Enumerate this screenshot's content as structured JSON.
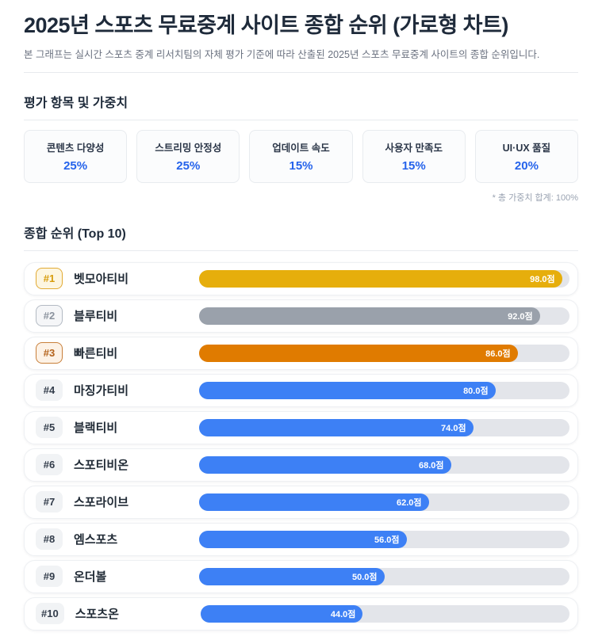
{
  "header": {
    "title": "2025년 스포츠 무료중계 사이트 종합 순위 (가로형 차트)",
    "subtitle": "본 그래프는 실시간 스포츠 중계 리서치팀의 자체 평가 기준에 따라 산출된 2025년 스포츠 무료중계 사이트의 종합 순위입니다."
  },
  "criteria_section": {
    "heading": "평가 항목 및 가중치",
    "items": [
      {
        "label": "콘텐츠 다양성",
        "weight": "25%"
      },
      {
        "label": "스트리밍 안정성",
        "weight": "25%"
      },
      {
        "label": "업데이트 속도",
        "weight": "15%"
      },
      {
        "label": "사용자 만족도",
        "weight": "15%"
      },
      {
        "label": "UI·UX 품질",
        "weight": "20%"
      }
    ],
    "footnote": "* 총 가중치 합계: 100%"
  },
  "ranking_section": {
    "heading": "종합 순위 (Top 10)",
    "rows": [
      {
        "rank": "#1",
        "name": "벳모아티비",
        "score": 98.0,
        "score_label": "98.0점",
        "tier": "gold"
      },
      {
        "rank": "#2",
        "name": "블루티비",
        "score": 92.0,
        "score_label": "92.0점",
        "tier": "silver"
      },
      {
        "rank": "#3",
        "name": "빠른티비",
        "score": 86.0,
        "score_label": "86.0점",
        "tier": "bronze"
      },
      {
        "rank": "#4",
        "name": "마징가티비",
        "score": 80.0,
        "score_label": "80.0점",
        "tier": "default"
      },
      {
        "rank": "#5",
        "name": "블랙티비",
        "score": 74.0,
        "score_label": "74.0점",
        "tier": "default"
      },
      {
        "rank": "#6",
        "name": "스포티비온",
        "score": 68.0,
        "score_label": "68.0점",
        "tier": "default"
      },
      {
        "rank": "#7",
        "name": "스포라이브",
        "score": 62.0,
        "score_label": "62.0점",
        "tier": "default"
      },
      {
        "rank": "#8",
        "name": "엠스포츠",
        "score": 56.0,
        "score_label": "56.0점",
        "tier": "default"
      },
      {
        "rank": "#9",
        "name": "온더볼",
        "score": 50.0,
        "score_label": "50.0점",
        "tier": "default"
      },
      {
        "rank": "#10",
        "name": "스포츠온",
        "score": 44.0,
        "score_label": "44.0점",
        "tier": "default"
      }
    ]
  },
  "colors": {
    "accent_blue": "#2563EB",
    "bar_track": "#E3E5EA",
    "bar_tiers": {
      "gold": "#E6AE0C",
      "silver": "#9AA1AB",
      "bronze": "#E07B00",
      "default": "#3D80F5"
    }
  },
  "chart_data": {
    "type": "bar",
    "orientation": "horizontal",
    "title": "2025년 스포츠 무료중계 사이트 종합 순위 (가로형 차트)",
    "categories": [
      "벳모아티비",
      "블루티비",
      "빠른티비",
      "마징가티비",
      "블랙티비",
      "스포티비온",
      "스포라이브",
      "엠스포츠",
      "온더볼",
      "스포츠온"
    ],
    "values": [
      98.0,
      92.0,
      86.0,
      80.0,
      74.0,
      68.0,
      62.0,
      56.0,
      50.0,
      44.0
    ],
    "value_unit": "점",
    "xlabel": "",
    "ylabel": "",
    "xlim": [
      0,
      100
    ],
    "grid": false,
    "legend": false,
    "data_labels": [
      "98.0점",
      "92.0점",
      "86.0점",
      "80.0점",
      "74.0점",
      "68.0점",
      "62.0점",
      "56.0점",
      "50.0점",
      "44.0점"
    ],
    "bar_colors": [
      "#E6AE0C",
      "#9AA1AB",
      "#E07B00",
      "#3D80F5",
      "#3D80F5",
      "#3D80F5",
      "#3D80F5",
      "#3D80F5",
      "#3D80F5",
      "#3D80F5"
    ]
  }
}
